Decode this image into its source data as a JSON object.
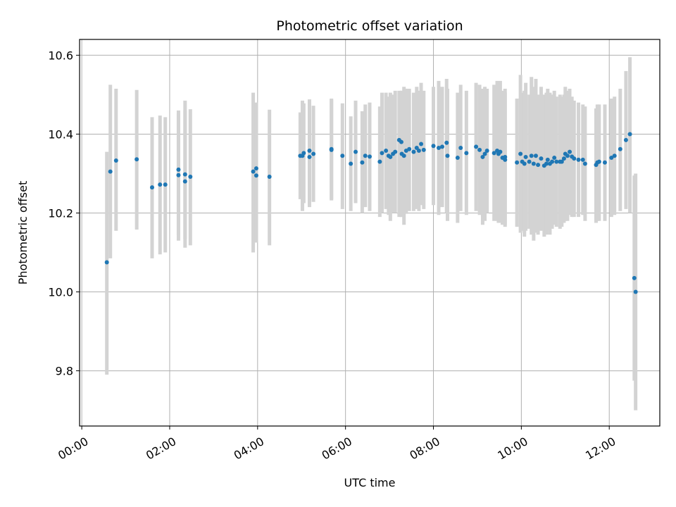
{
  "chart_data": {
    "type": "scatter",
    "title": "Photometric offset variation",
    "xlabel": "UTC time",
    "ylabel": "Photometric offset",
    "x_unit": "hours",
    "xlim": [
      -0.05,
      13.15
    ],
    "ylim": [
      9.66,
      10.64
    ],
    "x_ticks": [
      0,
      2,
      4,
      6,
      8,
      10,
      12
    ],
    "x_tick_labels": [
      "00:00",
      "02:00",
      "04:00",
      "06:00",
      "08:00",
      "10:00",
      "12:00"
    ],
    "y_ticks": [
      9.8,
      10.0,
      10.2,
      10.4,
      10.6
    ],
    "y_tick_labels": [
      "9.8",
      "10.0",
      "10.2",
      "10.4",
      "10.6"
    ],
    "grid": true,
    "legend": "none",
    "colors": {
      "point": "#1f77b4",
      "errorbar": "#d3d3d3",
      "grid": "#b0b0b0"
    },
    "series": [
      {
        "x": [
          0.57,
          0.65,
          0.78,
          1.25,
          1.6,
          1.78,
          1.9,
          2.2,
          2.2,
          2.35,
          2.35,
          2.47,
          3.9,
          3.97,
          3.97,
          4.27,
          4.97,
          5.02,
          5.05,
          5.18,
          5.18,
          5.27,
          5.68,
          5.68,
          5.93,
          6.12,
          6.23,
          6.38,
          6.45,
          6.55,
          6.78,
          6.83,
          6.92,
          6.98,
          7.02,
          7.08,
          7.13,
          7.22,
          7.27,
          7.28,
          7.33,
          7.38,
          7.45,
          7.55,
          7.62,
          7.67,
          7.72,
          7.78,
          8.0,
          8.12,
          8.2,
          8.3,
          8.32,
          8.55,
          8.62,
          8.75,
          8.97,
          9.05,
          9.12,
          9.17,
          9.22,
          9.38,
          9.45,
          9.48,
          9.52,
          9.57,
          9.63,
          9.63,
          9.9,
          9.98,
          10.02,
          10.07,
          10.1,
          10.18,
          10.23,
          10.28,
          10.33,
          10.38,
          10.45,
          10.52,
          10.57,
          10.6,
          10.65,
          10.7,
          10.75,
          10.8,
          10.88,
          10.92,
          10.97,
          11.0,
          11.05,
          11.1,
          11.15,
          11.2,
          11.3,
          11.4,
          11.45,
          11.7,
          11.73,
          11.77,
          11.9,
          12.05,
          12.12,
          12.25,
          12.38,
          12.47,
          12.57,
          12.6
        ],
        "y": [
          10.075,
          10.305,
          10.333,
          10.336,
          10.265,
          10.272,
          10.272,
          10.31,
          10.296,
          10.298,
          10.28,
          10.292,
          10.305,
          10.295,
          10.313,
          10.292,
          10.345,
          10.345,
          10.352,
          10.358,
          10.342,
          10.35,
          10.36,
          10.362,
          10.345,
          10.325,
          10.355,
          10.328,
          10.345,
          10.343,
          10.33,
          10.352,
          10.358,
          10.345,
          10.342,
          10.35,
          10.355,
          10.385,
          10.38,
          10.35,
          10.345,
          10.358,
          10.362,
          10.355,
          10.365,
          10.358,
          10.375,
          10.36,
          10.37,
          10.365,
          10.368,
          10.378,
          10.345,
          10.34,
          10.365,
          10.352,
          10.368,
          10.36,
          10.342,
          10.35,
          10.358,
          10.352,
          10.358,
          10.35,
          10.355,
          10.34,
          10.342,
          10.335,
          10.328,
          10.35,
          10.33,
          10.325,
          10.342,
          10.33,
          10.345,
          10.325,
          10.345,
          10.322,
          10.338,
          10.32,
          10.325,
          10.335,
          10.325,
          10.33,
          10.34,
          10.33,
          10.33,
          10.33,
          10.338,
          10.35,
          10.345,
          10.355,
          10.343,
          10.338,
          10.335,
          10.335,
          10.325,
          10.322,
          10.328,
          10.33,
          10.328,
          10.34,
          10.345,
          10.362,
          10.385,
          10.4,
          10.035,
          10.0
        ],
        "yerr_low": [
          9.79,
          10.085,
          10.155,
          10.158,
          10.085,
          10.095,
          10.1,
          10.145,
          10.13,
          10.135,
          10.112,
          10.118,
          10.1,
          10.125,
          10.145,
          10.118,
          10.235,
          10.205,
          10.225,
          10.23,
          10.215,
          10.228,
          10.235,
          10.232,
          10.21,
          10.205,
          10.225,
          10.2,
          10.215,
          10.205,
          10.19,
          10.2,
          10.21,
          10.195,
          10.18,
          10.2,
          10.2,
          10.19,
          10.19,
          10.19,
          10.17,
          10.198,
          10.205,
          10.205,
          10.21,
          10.205,
          10.22,
          10.21,
          10.22,
          10.195,
          10.215,
          10.2,
          10.18,
          10.175,
          10.205,
          10.195,
          10.205,
          10.195,
          10.17,
          10.18,
          10.2,
          10.18,
          10.18,
          10.175,
          10.175,
          10.17,
          10.17,
          10.165,
          10.165,
          10.15,
          10.155,
          10.14,
          10.155,
          10.16,
          10.145,
          10.13,
          10.15,
          10.145,
          10.155,
          10.14,
          10.145,
          10.155,
          10.145,
          10.16,
          10.17,
          10.165,
          10.16,
          10.165,
          10.175,
          10.18,
          10.18,
          10.195,
          10.19,
          10.19,
          10.19,
          10.195,
          10.18,
          10.175,
          10.18,
          10.18,
          10.18,
          10.19,
          10.195,
          10.205,
          10.21,
          10.2,
          9.775,
          9.7
        ],
        "yerr_high": [
          10.355,
          10.525,
          10.515,
          10.512,
          10.443,
          10.447,
          10.443,
          10.452,
          10.46,
          10.46,
          10.485,
          10.463,
          10.505,
          10.47,
          10.48,
          10.462,
          10.455,
          10.485,
          10.478,
          10.488,
          10.472,
          10.472,
          10.49,
          10.488,
          10.478,
          10.445,
          10.485,
          10.458,
          10.475,
          10.48,
          10.47,
          10.505,
          10.505,
          10.495,
          10.505,
          10.5,
          10.51,
          10.51,
          10.51,
          10.51,
          10.52,
          10.515,
          10.515,
          10.505,
          10.52,
          10.51,
          10.53,
          10.51,
          10.52,
          10.535,
          10.52,
          10.54,
          10.515,
          10.505,
          10.525,
          10.51,
          10.53,
          10.525,
          10.515,
          10.52,
          10.515,
          10.525,
          10.535,
          10.525,
          10.535,
          10.51,
          10.515,
          10.505,
          10.49,
          10.55,
          10.505,
          10.51,
          10.53,
          10.5,
          10.545,
          10.52,
          10.54,
          10.5,
          10.52,
          10.5,
          10.505,
          10.515,
          10.505,
          10.5,
          10.51,
          10.495,
          10.5,
          10.495,
          10.5,
          10.52,
          10.51,
          10.515,
          10.495,
          10.485,
          10.48,
          10.475,
          10.47,
          10.465,
          10.475,
          10.475,
          10.475,
          10.49,
          10.495,
          10.515,
          10.56,
          10.595,
          10.295,
          10.3
        ]
      }
    ]
  }
}
